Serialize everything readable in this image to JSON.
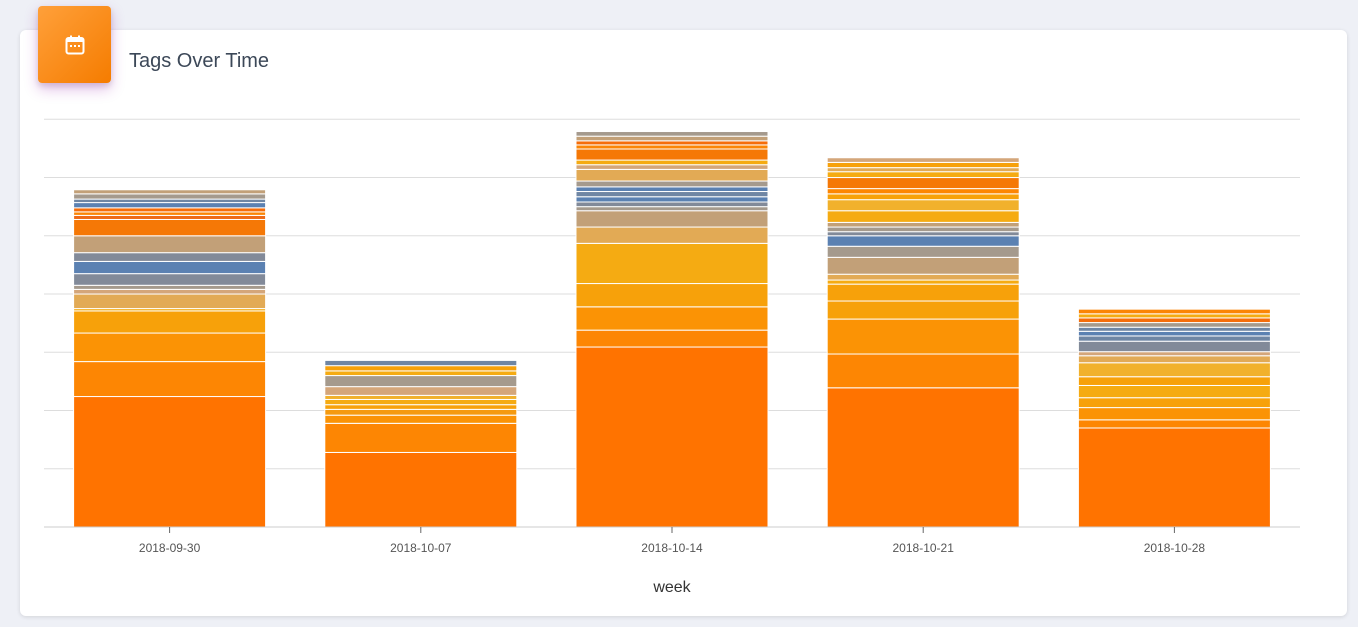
{
  "card": {
    "title": "Tags Over Time",
    "icon": "calendar-icon",
    "icon_color": "#ffffff",
    "header_gradient": [
      "#ffa03a",
      "#f57c00"
    ]
  },
  "chart_data": {
    "type": "bar",
    "stacked": true,
    "xlabel": "week",
    "ylabel": "",
    "ylim": [
      0,
      7.4
    ],
    "gridlines": [
      1,
      2,
      3,
      4,
      5,
      6,
      7
    ],
    "y_tick_labels_visible": false,
    "categories": [
      "2018-09-30",
      "2018-10-07",
      "2018-10-14",
      "2018-10-21",
      "2018-10-28"
    ],
    "stacks": [
      {
        "category": "2018-09-30",
        "segments": [
          {
            "value": 2.24,
            "color": "#ff7300"
          },
          {
            "value": 0.6,
            "color": "#fd8603"
          },
          {
            "value": 0.49,
            "color": "#fb9305"
          },
          {
            "value": 0.38,
            "color": "#f7a10a"
          },
          {
            "value": 0.04,
            "color": "#f5ab12"
          },
          {
            "value": 0.25,
            "color": "#e2aa55"
          },
          {
            "value": 0.08,
            "color": "#d4a67a"
          },
          {
            "value": 0.07,
            "color": "#a59a8d"
          },
          {
            "value": 0.2,
            "color": "#828a99"
          },
          {
            "value": 0.21,
            "color": "#5b81b2"
          },
          {
            "value": 0.15,
            "color": "#828a99"
          },
          {
            "value": 0.29,
            "color": "#c2a078"
          },
          {
            "value": 0.28,
            "color": "#f57806"
          },
          {
            "value": 0.07,
            "color": "#ee6a16"
          },
          {
            "value": 0.06,
            "color": "#fb8505"
          },
          {
            "value": 0.07,
            "color": "#f56d0a"
          },
          {
            "value": 0.09,
            "color": "#5b81b2"
          },
          {
            "value": 0.06,
            "color": "#6f86a4"
          },
          {
            "value": 0.09,
            "color": "#a59a8d"
          },
          {
            "value": 0.07,
            "color": "#c2a078"
          }
        ]
      },
      {
        "category": "2018-10-07",
        "segments": [
          {
            "value": 1.28,
            "color": "#ff7300"
          },
          {
            "value": 0.5,
            "color": "#fd8603"
          },
          {
            "value": 0.14,
            "color": "#fb9305"
          },
          {
            "value": 0.1,
            "color": "#f59a0f"
          },
          {
            "value": 0.08,
            "color": "#f7a10a"
          },
          {
            "value": 0.09,
            "color": "#f5ab12"
          },
          {
            "value": 0.07,
            "color": "#f1b12c"
          },
          {
            "value": 0.15,
            "color": "#d4a67a"
          },
          {
            "value": 0.19,
            "color": "#a59a8d"
          },
          {
            "value": 0.08,
            "color": "#f5ab12"
          },
          {
            "value": 0.09,
            "color": "#f7a10a"
          },
          {
            "value": 0.09,
            "color": "#6f86a4"
          }
        ]
      },
      {
        "category": "2018-10-14",
        "segments": [
          {
            "value": 3.09,
            "color": "#ff7300"
          },
          {
            "value": 0.29,
            "color": "#fd8603"
          },
          {
            "value": 0.4,
            "color": "#fb9305"
          },
          {
            "value": 0.4,
            "color": "#f7a10a"
          },
          {
            "value": 0.69,
            "color": "#f5ab12"
          },
          {
            "value": 0.28,
            "color": "#e2aa55"
          },
          {
            "value": 0.28,
            "color": "#c2a078"
          },
          {
            "value": 0.07,
            "color": "#a59a8d"
          },
          {
            "value": 0.08,
            "color": "#828a99"
          },
          {
            "value": 0.09,
            "color": "#5b81b2"
          },
          {
            "value": 0.09,
            "color": "#6f86a4"
          },
          {
            "value": 0.08,
            "color": "#5b81b2"
          },
          {
            "value": 0.1,
            "color": "#a59a8d"
          },
          {
            "value": 0.2,
            "color": "#e2aa55"
          },
          {
            "value": 0.08,
            "color": "#d4a67a"
          },
          {
            "value": 0.08,
            "color": "#f5ab12"
          },
          {
            "value": 0.19,
            "color": "#f57806"
          },
          {
            "value": 0.07,
            "color": "#fb8505"
          },
          {
            "value": 0.07,
            "color": "#f56d0a"
          },
          {
            "value": 0.08,
            "color": "#c2a078"
          },
          {
            "value": 0.08,
            "color": "#a59a8d"
          }
        ]
      },
      {
        "category": "2018-10-21",
        "segments": [
          {
            "value": 2.39,
            "color": "#ff7300"
          },
          {
            "value": 0.58,
            "color": "#fd8603"
          },
          {
            "value": 0.6,
            "color": "#fb9305"
          },
          {
            "value": 0.31,
            "color": "#f7a10a"
          },
          {
            "value": 0.29,
            "color": "#f7a10a"
          },
          {
            "value": 0.07,
            "color": "#f5ab12"
          },
          {
            "value": 0.1,
            "color": "#e2aa55"
          },
          {
            "value": 0.29,
            "color": "#c2a078"
          },
          {
            "value": 0.19,
            "color": "#a59a8d"
          },
          {
            "value": 0.18,
            "color": "#5b81b2"
          },
          {
            "value": 0.07,
            "color": "#828a99"
          },
          {
            "value": 0.08,
            "color": "#a59a8d"
          },
          {
            "value": 0.08,
            "color": "#c2a078"
          },
          {
            "value": 0.2,
            "color": "#f5ab12"
          },
          {
            "value": 0.19,
            "color": "#f1b12c"
          },
          {
            "value": 0.1,
            "color": "#f7a10a"
          },
          {
            "value": 0.09,
            "color": "#fd8603"
          },
          {
            "value": 0.19,
            "color": "#f57806"
          },
          {
            "value": 0.1,
            "color": "#f5ab12"
          },
          {
            "value": 0.07,
            "color": "#e2aa55"
          },
          {
            "value": 0.09,
            "color": "#f7a10a"
          },
          {
            "value": 0.08,
            "color": "#d4a67a"
          }
        ]
      },
      {
        "category": "2018-10-28",
        "segments": [
          {
            "value": 1.7,
            "color": "#ff7300"
          },
          {
            "value": 0.14,
            "color": "#fd8603"
          },
          {
            "value": 0.21,
            "color": "#fb9305"
          },
          {
            "value": 0.17,
            "color": "#f7a10a"
          },
          {
            "value": 0.21,
            "color": "#f5ab12"
          },
          {
            "value": 0.15,
            "color": "#f7a10a"
          },
          {
            "value": 0.24,
            "color": "#f1b12c"
          },
          {
            "value": 0.12,
            "color": "#e2aa55"
          },
          {
            "value": 0.07,
            "color": "#d4a67a"
          },
          {
            "value": 0.18,
            "color": "#828a99"
          },
          {
            "value": 0.09,
            "color": "#6f86a4"
          },
          {
            "value": 0.08,
            "color": "#5b81b2"
          },
          {
            "value": 0.07,
            "color": "#6f86a4"
          },
          {
            "value": 0.08,
            "color": "#a59a8d"
          },
          {
            "value": 0.08,
            "color": "#f56d0a"
          },
          {
            "value": 0.07,
            "color": "#f5ab12"
          },
          {
            "value": 0.08,
            "color": "#fb8505"
          }
        ]
      }
    ]
  }
}
